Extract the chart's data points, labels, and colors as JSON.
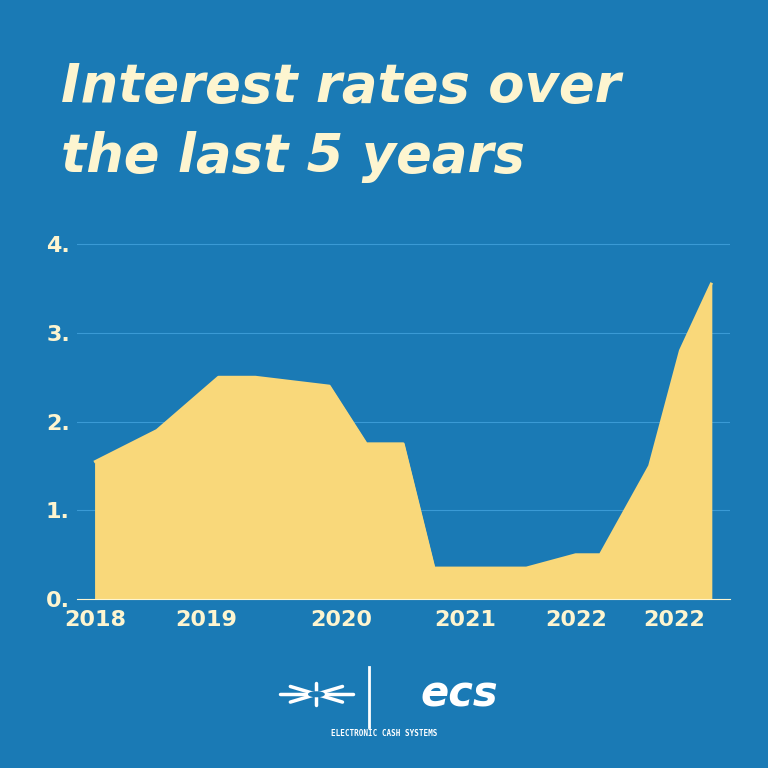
{
  "title_line1": "Interest rates over",
  "title_line2": "the last 5 years",
  "background_color": "#1a7ab5",
  "fill_color": "#f9d87a",
  "title_color": "#fdf5d0",
  "tick_color": "#fdf5d0",
  "grid_color": "#3a9ad5",
  "x_labels": [
    "2018",
    "2019",
    "2020",
    "2021",
    "2022",
    "2022"
  ],
  "ytick_labels": [
    "0.",
    "1.",
    "2.",
    "3.",
    "4."
  ],
  "ytick_values": [
    0,
    1,
    2,
    3,
    4
  ],
  "ylim": [
    0,
    4.5
  ],
  "x_data": [
    2018.0,
    2018.5,
    2019.0,
    2019.3,
    2019.6,
    2019.9,
    2020.2,
    2020.5,
    2020.75,
    2021.0,
    2021.5,
    2021.9,
    2022.1,
    2022.5,
    2022.75,
    2023.0
  ],
  "y_data": [
    1.55,
    1.9,
    2.5,
    2.5,
    2.45,
    2.4,
    1.75,
    1.75,
    0.35,
    0.35,
    0.35,
    0.5,
    0.5,
    1.5,
    2.8,
    3.55
  ],
  "logo_text": "ecs",
  "logo_sub": "ELECTRONIC CASH SYSTEMS",
  "xlabel_fontsize": 16,
  "ylabel_fontsize": 16,
  "title_fontsize": 38
}
